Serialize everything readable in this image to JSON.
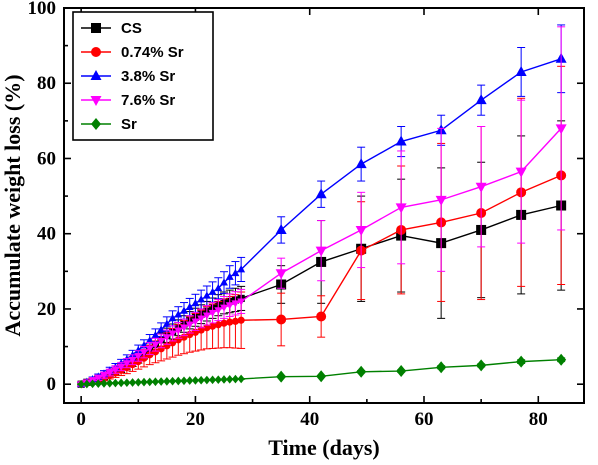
{
  "chart_data": {
    "type": "line",
    "xlabel": "Time (days)",
    "ylabel": "Accumulate weight loss (%)",
    "xlim": [
      -3,
      88
    ],
    "ylim": [
      -5,
      100
    ],
    "xticks": [
      0,
      20,
      40,
      60,
      80
    ],
    "yticks": [
      0,
      20,
      40,
      60,
      80,
      100
    ],
    "grid": false,
    "legend_position": "top-left",
    "series": [
      {
        "name": "CS",
        "color": "#000000",
        "marker": "square",
        "x": [
          0,
          1,
          2,
          3,
          4,
          5,
          6,
          7,
          8,
          9,
          10,
          11,
          12,
          13,
          14,
          15,
          16,
          17,
          18,
          19,
          20,
          21,
          22,
          23,
          24,
          25,
          26,
          27,
          28,
          35,
          42,
          49,
          56,
          63,
          70,
          77,
          84
        ],
        "y": [
          0,
          0.5,
          1,
          1.5,
          2,
          2.8,
          3.5,
          4.2,
          5,
          6,
          7,
          8.2,
          9.4,
          10.6,
          11.8,
          13,
          14,
          15,
          16,
          17,
          17.8,
          18.6,
          19.4,
          20.2,
          21,
          21.6,
          22,
          22.4,
          22.8,
          26.5,
          32.5,
          36,
          39.5,
          37.5,
          41,
          45,
          47.5
        ],
        "err": [
          0.5,
          0.5,
          0.6,
          0.7,
          0.8,
          0.9,
          1,
          1.1,
          1.2,
          1.3,
          1.4,
          1.5,
          1.6,
          1.7,
          1.8,
          1.9,
          2,
          2.1,
          2.2,
          2.3,
          2.4,
          2.5,
          2.6,
          2.7,
          2.8,
          2.9,
          3,
          3.1,
          3.2,
          5,
          11,
          14,
          15,
          20,
          18,
          21,
          22.5
        ]
      },
      {
        "name": "0.74% Sr",
        "color": "#ff0000",
        "marker": "circle",
        "x": [
          0,
          1,
          2,
          3,
          4,
          5,
          6,
          7,
          8,
          9,
          10,
          11,
          12,
          13,
          14,
          15,
          16,
          17,
          18,
          19,
          20,
          21,
          22,
          23,
          24,
          25,
          26,
          27,
          28,
          35,
          42,
          49,
          56,
          63,
          70,
          77,
          84
        ],
        "y": [
          0,
          0.4,
          0.8,
          1.3,
          1.8,
          2.4,
          3,
          3.7,
          4.4,
          5.2,
          6,
          6.9,
          7.8,
          8.6,
          9.4,
          10.2,
          11,
          11.8,
          12.5,
          13.2,
          13.8,
          14.4,
          15,
          15.4,
          15.8,
          16.2,
          16.5,
          16.7,
          17,
          17.2,
          18,
          35.5,
          41,
          43,
          45.5,
          51,
          55.5
        ],
        "err": [
          0.5,
          0.6,
          0.7,
          0.8,
          0.9,
          1,
          1.2,
          1.4,
          1.6,
          1.8,
          2,
          2.3,
          2.6,
          2.9,
          3.2,
          3.5,
          3.8,
          4.1,
          4.4,
          4.7,
          5,
          5.3,
          5.6,
          5.9,
          6.2,
          6.5,
          6.8,
          7.1,
          7.5,
          7,
          5.5,
          13,
          17,
          21,
          23,
          25,
          29
        ]
      },
      {
        "name": "3.8% Sr",
        "color": "#0000ff",
        "marker": "triangle-up",
        "x": [
          0,
          1,
          2,
          3,
          4,
          5,
          6,
          7,
          8,
          9,
          10,
          11,
          12,
          13,
          14,
          15,
          16,
          17,
          18,
          19,
          20,
          21,
          22,
          23,
          24,
          25,
          26,
          27,
          28,
          35,
          42,
          49,
          56,
          63,
          70,
          77,
          84
        ],
        "y": [
          0,
          0.6,
          1.3,
          2,
          2.8,
          3.6,
          4.5,
          5.5,
          6.6,
          7.7,
          9,
          10.3,
          11.6,
          13,
          14.5,
          16,
          17.5,
          18.5,
          19.5,
          20.5,
          21.5,
          22.5,
          23.5,
          24.5,
          25.5,
          27,
          28.5,
          29.5,
          30.5,
          41,
          50.5,
          58.5,
          64.5,
          67.5,
          75.5,
          83,
          86.5
        ],
        "err": [
          0.5,
          0.5,
          0.6,
          0.7,
          0.8,
          0.9,
          1,
          1.1,
          1.2,
          1.3,
          1.4,
          1.5,
          1.6,
          1.7,
          1.8,
          1.9,
          2,
          2.1,
          2.2,
          2.3,
          2.4,
          2.5,
          2.6,
          2.7,
          2.8,
          2.9,
          3,
          3.1,
          3.2,
          3.5,
          3.5,
          4.5,
          4,
          4,
          4,
          6.5,
          9
        ]
      },
      {
        "name": "7.6% Sr",
        "color": "#ff00ff",
        "marker": "triangle-down",
        "x": [
          0,
          1,
          2,
          3,
          4,
          5,
          6,
          7,
          8,
          9,
          10,
          11,
          12,
          13,
          14,
          15,
          16,
          17,
          18,
          19,
          20,
          21,
          22,
          23,
          24,
          25,
          26,
          27,
          28,
          35,
          42,
          49,
          56,
          63,
          70,
          77,
          84
        ],
        "y": [
          0,
          0.5,
          1.1,
          1.7,
          2.4,
          3.1,
          3.9,
          4.7,
          5.6,
          6.5,
          7.5,
          8.5,
          9.5,
          10.5,
          11.5,
          12.5,
          13.5,
          14.3,
          15.1,
          15.9,
          16.7,
          17.5,
          18.3,
          19,
          19.7,
          20.4,
          21,
          21.5,
          22,
          29.5,
          35.5,
          41,
          47,
          49,
          52.5,
          56.5,
          68
        ],
        "err": [
          0.5,
          0.5,
          0.6,
          0.7,
          0.8,
          0.9,
          1,
          1.1,
          1.2,
          1.3,
          1.4,
          1.5,
          1.6,
          1.7,
          1.8,
          1.9,
          2,
          2.1,
          2.2,
          2.3,
          2.4,
          2.5,
          2.6,
          2.7,
          2.8,
          2.9,
          3,
          3.1,
          3.2,
          4,
          8,
          10,
          15,
          19,
          16,
          19,
          27
        ]
      },
      {
        "name": "Sr",
        "color": "#008000",
        "marker": "diamond",
        "x": [
          0,
          1,
          2,
          3,
          4,
          5,
          6,
          7,
          8,
          9,
          10,
          11,
          12,
          13,
          14,
          15,
          16,
          17,
          18,
          19,
          20,
          21,
          22,
          23,
          24,
          25,
          26,
          27,
          28,
          35,
          42,
          49,
          56,
          63,
          70,
          77,
          84
        ],
        "y": [
          0,
          0.05,
          0.1,
          0.15,
          0.2,
          0.25,
          0.3,
          0.35,
          0.4,
          0.45,
          0.5,
          0.55,
          0.6,
          0.65,
          0.7,
          0.75,
          0.8,
          0.85,
          0.9,
          0.95,
          1,
          1.05,
          1.1,
          1.15,
          1.2,
          1.25,
          1.3,
          1.35,
          1.4,
          2,
          2.1,
          3.3,
          3.5,
          4.5,
          5,
          6,
          6.5
        ],
        "err": [
          0.1,
          0.1,
          0.1,
          0.1,
          0.1,
          0.1,
          0.1,
          0.1,
          0.1,
          0.1,
          0.1,
          0.1,
          0.1,
          0.1,
          0.1,
          0.1,
          0.1,
          0.1,
          0.1,
          0.1,
          0.1,
          0.1,
          0.1,
          0.1,
          0.1,
          0.1,
          0.1,
          0.1,
          0.1,
          0.2,
          0.2,
          0.3,
          0.3,
          0.4,
          0.4,
          0.5,
          0.5
        ]
      }
    ]
  }
}
